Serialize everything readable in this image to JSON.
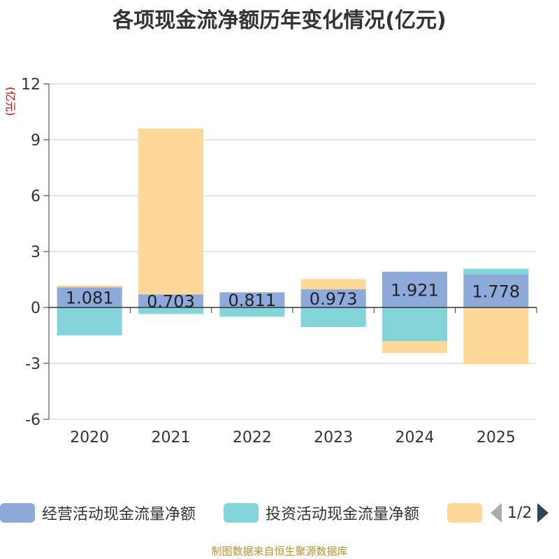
{
  "title": "各项现金流净额历年变化情况(亿元)",
  "source": "制图数据来自恒生聚源数据库",
  "legend": {
    "pager_text": "1/2",
    "items": [
      {
        "label": "经营活动现金流量净额",
        "color": "#8eaadb"
      },
      {
        "label": "投资活动现金流量净额",
        "color": "#84d5d9"
      },
      {
        "label": "",
        "color": "#fdd898"
      }
    ]
  },
  "chart_data": {
    "type": "bar",
    "stacked": true,
    "title": "各项现金流净额历年变化情况(亿元)",
    "ylabel": "(亿元)",
    "ylim": [
      -6,
      12
    ],
    "yticks": [
      12,
      9,
      6,
      3,
      0,
      -3,
      -6
    ],
    "ytick_labels": [
      "12",
      "9",
      "6",
      "3",
      "0",
      "-3",
      "-6"
    ],
    "grid": true,
    "categories": [
      "2020",
      "2021",
      "2022",
      "2023",
      "2024",
      "2025"
    ],
    "series": [
      {
        "name": "经营活动现金流量净额",
        "color": "#8eaadb",
        "values": [
          1.081,
          0.703,
          0.811,
          0.973,
          1.921,
          1.778
        ],
        "labels": [
          "1.081",
          "0.703",
          "0.811",
          "0.973",
          "1.921",
          "1.778"
        ]
      },
      {
        "name": "投资活动现金流量净额",
        "color": "#84d5d9",
        "values": [
          -1.5,
          -0.35,
          -0.5,
          -1.05,
          -1.8,
          0.3
        ]
      },
      {
        "name": "",
        "color": "#fdd898",
        "values": [
          0.1,
          8.9,
          0.0,
          0.55,
          -0.65,
          -3.05
        ]
      }
    ]
  }
}
